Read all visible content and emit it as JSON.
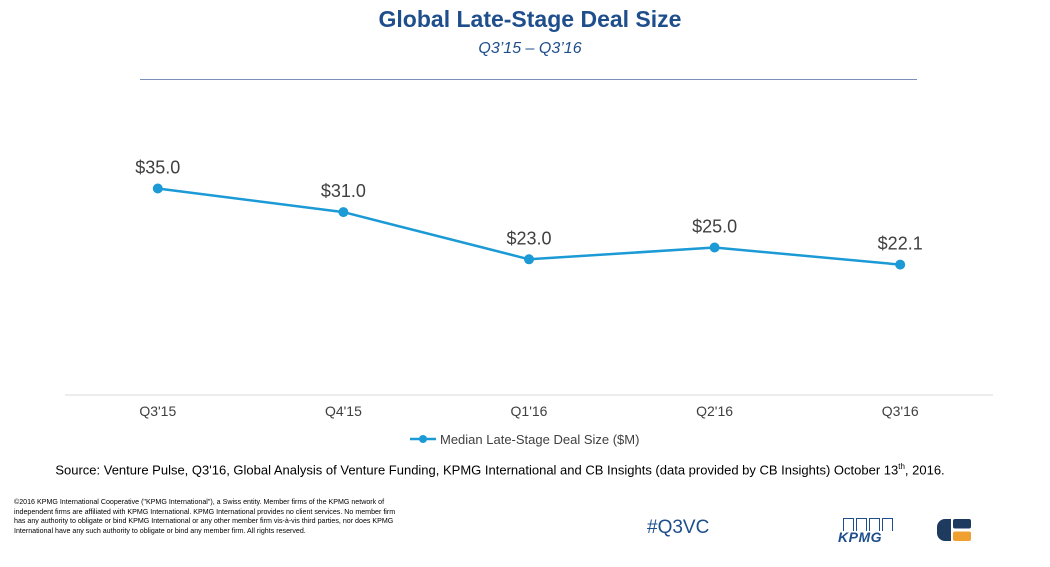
{
  "header": {
    "title": "Global Late-Stage Deal Size",
    "subtitle": "Q3’15 – Q3’16"
  },
  "chart_data": {
    "type": "line",
    "title": "Global Late-Stage Deal Size",
    "subtitle": "Q3’15 – Q3’16",
    "categories": [
      "Q3'15",
      "Q4'15",
      "Q1'16",
      "Q2'16",
      "Q3'16"
    ],
    "series": [
      {
        "name": "Median Late-Stage Deal Size ($M)",
        "values": [
          35.0,
          31.0,
          23.0,
          25.0,
          22.1
        ],
        "labels": [
          "$35.0",
          "$31.0",
          "$23.0",
          "$25.0",
          "$22.1"
        ],
        "color": "#1b9ad6"
      }
    ],
    "ylim": [
      0,
      50
    ],
    "xlabel": "",
    "ylabel": "",
    "grid": false,
    "legend": "bottom"
  },
  "footer": {
    "source": "Source: Venture Pulse, Q3'16, Global Analysis of Venture Funding, KPMG International and CB Insights (data provided by CB Insights) October 13",
    "source_sup": "th",
    "source_end": ", 2016.",
    "copyright": "©2016 KPMG International Cooperative (\"KPMG International\"), a Swiss entity. Member firms of the KPMG network of independent firms are affiliated with KPMG International. KPMG International provides no client services. No member firm has any authority to obligate or bind KPMG International or any other member firm vis-à-vis third parties, nor does KPMG International have any such authority to obligate or bind any member firm. All rights reserved.",
    "hashtag": "#Q3VC",
    "kpmg_logo_text": "KPMG"
  },
  "colors": {
    "brand_blue": "#1f4e8c",
    "series_blue": "#1b9ad6",
    "axis_gray": "#d9d9d9",
    "cb_dark": "#1e3a5f",
    "cb_orange": "#f0a030"
  }
}
